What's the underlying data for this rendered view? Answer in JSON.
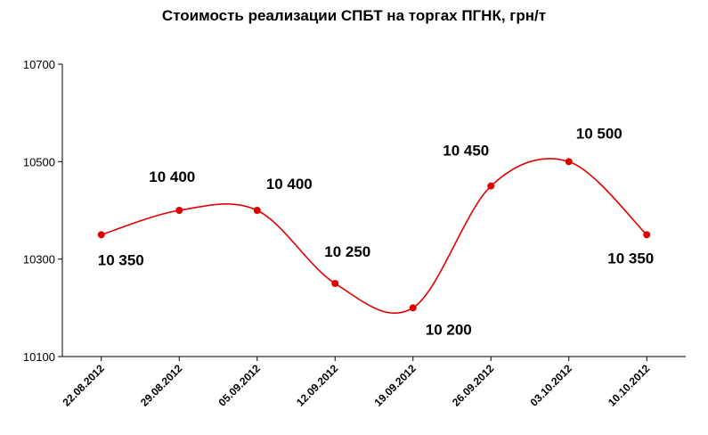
{
  "chart_data": {
    "type": "line",
    "title": "Стоимость реализации СПБТ на торгах ПГНК, грн/т",
    "categories": [
      "22.08.2012",
      "29.08.2012",
      "05.09.2012",
      "12.09.2012",
      "19.09.2012",
      "26.09.2012",
      "03.10.2012",
      "10.10.2012"
    ],
    "values": [
      10350,
      10400,
      10400,
      10250,
      10200,
      10450,
      10500,
      10350
    ],
    "data_labels": [
      "10 350",
      "10 400",
      "10 400",
      "10 250",
      "10 200",
      "10 450",
      "10 500",
      "10 350"
    ],
    "ylim": [
      10100,
      10700
    ],
    "yticks": [
      "10100",
      "10300",
      "10500",
      "10700"
    ],
    "line_color": "#e00000",
    "smooth": true,
    "grid": false,
    "legend": "none"
  }
}
